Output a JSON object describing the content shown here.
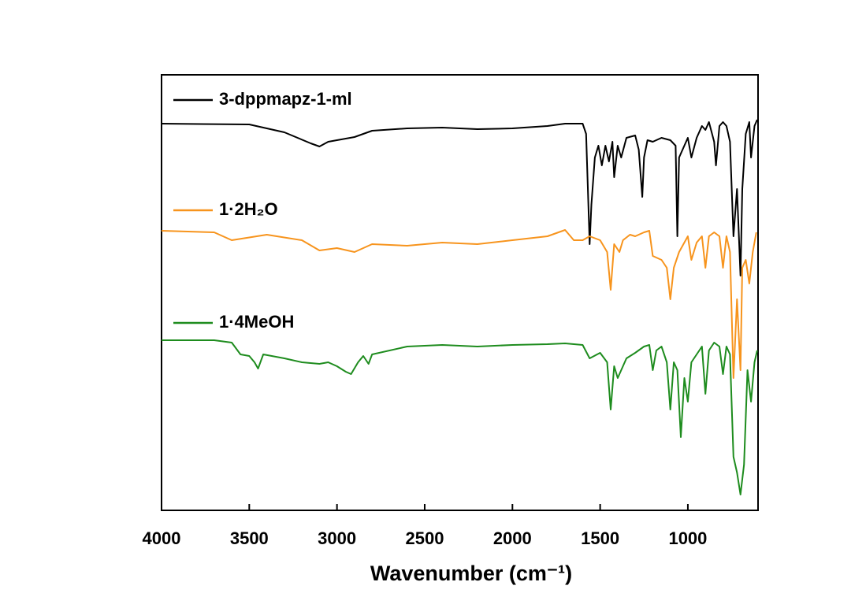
{
  "chart_data": {
    "type": "line",
    "x_label": "Wavenumber (cm⁻¹)",
    "xlim": [
      4000,
      600
    ],
    "xticks": [
      4000,
      3500,
      3000,
      2500,
      2000,
      1500,
      1000
    ],
    "ylim": [
      0,
      553
    ],
    "series": [
      {
        "name": "3-dppmapz-1-ml",
        "color": "#000000",
        "x": [
          4000,
          3500,
          3300,
          3150,
          3100,
          3050,
          3000,
          2950,
          2900,
          2800,
          2600,
          2400,
          2200,
          2000,
          1800,
          1700,
          1600,
          1580,
          1560,
          1550,
          1530,
          1510,
          1490,
          1470,
          1450,
          1430,
          1420,
          1400,
          1380,
          1350,
          1300,
          1280,
          1260,
          1250,
          1230,
          1200,
          1150,
          1100,
          1070,
          1060,
          1050,
          1000,
          980,
          950,
          920,
          900,
          880,
          850,
          840,
          820,
          800,
          780,
          760,
          740,
          720,
          700,
          690,
          670,
          650,
          640,
          620,
          605
        ],
        "values": [
          491,
          490,
          480,
          466,
          462,
          468,
          470,
          472,
          474,
          482,
          485,
          486,
          484,
          485,
          488,
          491,
          491,
          478,
          338,
          388,
          448,
          463,
          438,
          463,
          443,
          468,
          423,
          463,
          448,
          473,
          476,
          458,
          398,
          448,
          470,
          468,
          473,
          470,
          463,
          348,
          448,
          473,
          448,
          473,
          488,
          483,
          493,
          468,
          438,
          488,
          493,
          488,
          468,
          348,
          408,
          298,
          408,
          478,
          493,
          448,
          488,
          496
        ]
      },
      {
        "name": "1·2H₂O",
        "color": "#f7941d",
        "x": [
          4000,
          3700,
          3600,
          3400,
          3200,
          3100,
          3000,
          2900,
          2800,
          2600,
          2400,
          2200,
          2000,
          1800,
          1700,
          1650,
          1600,
          1560,
          1500,
          1460,
          1440,
          1420,
          1390,
          1370,
          1330,
          1300,
          1250,
          1220,
          1200,
          1150,
          1120,
          1100,
          1080,
          1050,
          1000,
          980,
          950,
          920,
          900,
          880,
          850,
          820,
          800,
          780,
          760,
          740,
          720,
          700,
          690,
          670,
          650,
          630,
          610
        ],
        "values": [
          355,
          353,
          343,
          350,
          343,
          330,
          333,
          328,
          338,
          336,
          340,
          338,
          343,
          348,
          356,
          343,
          343,
          348,
          343,
          328,
          280,
          338,
          328,
          343,
          350,
          348,
          353,
          355,
          323,
          318,
          308,
          268,
          308,
          328,
          348,
          318,
          340,
          348,
          308,
          348,
          353,
          348,
          308,
          348,
          328,
          168,
          268,
          178,
          308,
          318,
          288,
          328,
          353
        ]
      },
      {
        "name": "1·4MeOH",
        "color": "#1e8c1e",
        "x": [
          4000,
          3700,
          3600,
          3550,
          3500,
          3470,
          3450,
          3420,
          3300,
          3200,
          3100,
          3050,
          3000,
          2950,
          2920,
          2880,
          2850,
          2820,
          2800,
          2600,
          2400,
          2200,
          2000,
          1800,
          1700,
          1600,
          1560,
          1500,
          1460,
          1440,
          1420,
          1400,
          1350,
          1300,
          1250,
          1220,
          1200,
          1180,
          1150,
          1120,
          1100,
          1080,
          1060,
          1040,
          1020,
          1000,
          980,
          950,
          920,
          900,
          880,
          850,
          820,
          800,
          780,
          760,
          740,
          720,
          700,
          680,
          660,
          640,
          620,
          605
        ],
        "values": [
          216,
          216,
          213,
          198,
          196,
          188,
          180,
          198,
          193,
          188,
          186,
          188,
          183,
          176,
          173,
          188,
          196,
          186,
          198,
          208,
          210,
          208,
          210,
          211,
          212,
          210,
          193,
          200,
          188,
          128,
          183,
          168,
          193,
          200,
          208,
          210,
          178,
          203,
          208,
          188,
          128,
          188,
          178,
          93,
          168,
          138,
          188,
          198,
          208,
          148,
          203,
          213,
          208,
          173,
          208,
          198,
          68,
          48,
          20,
          58,
          178,
          138,
          188,
          203
        ]
      }
    ]
  }
}
